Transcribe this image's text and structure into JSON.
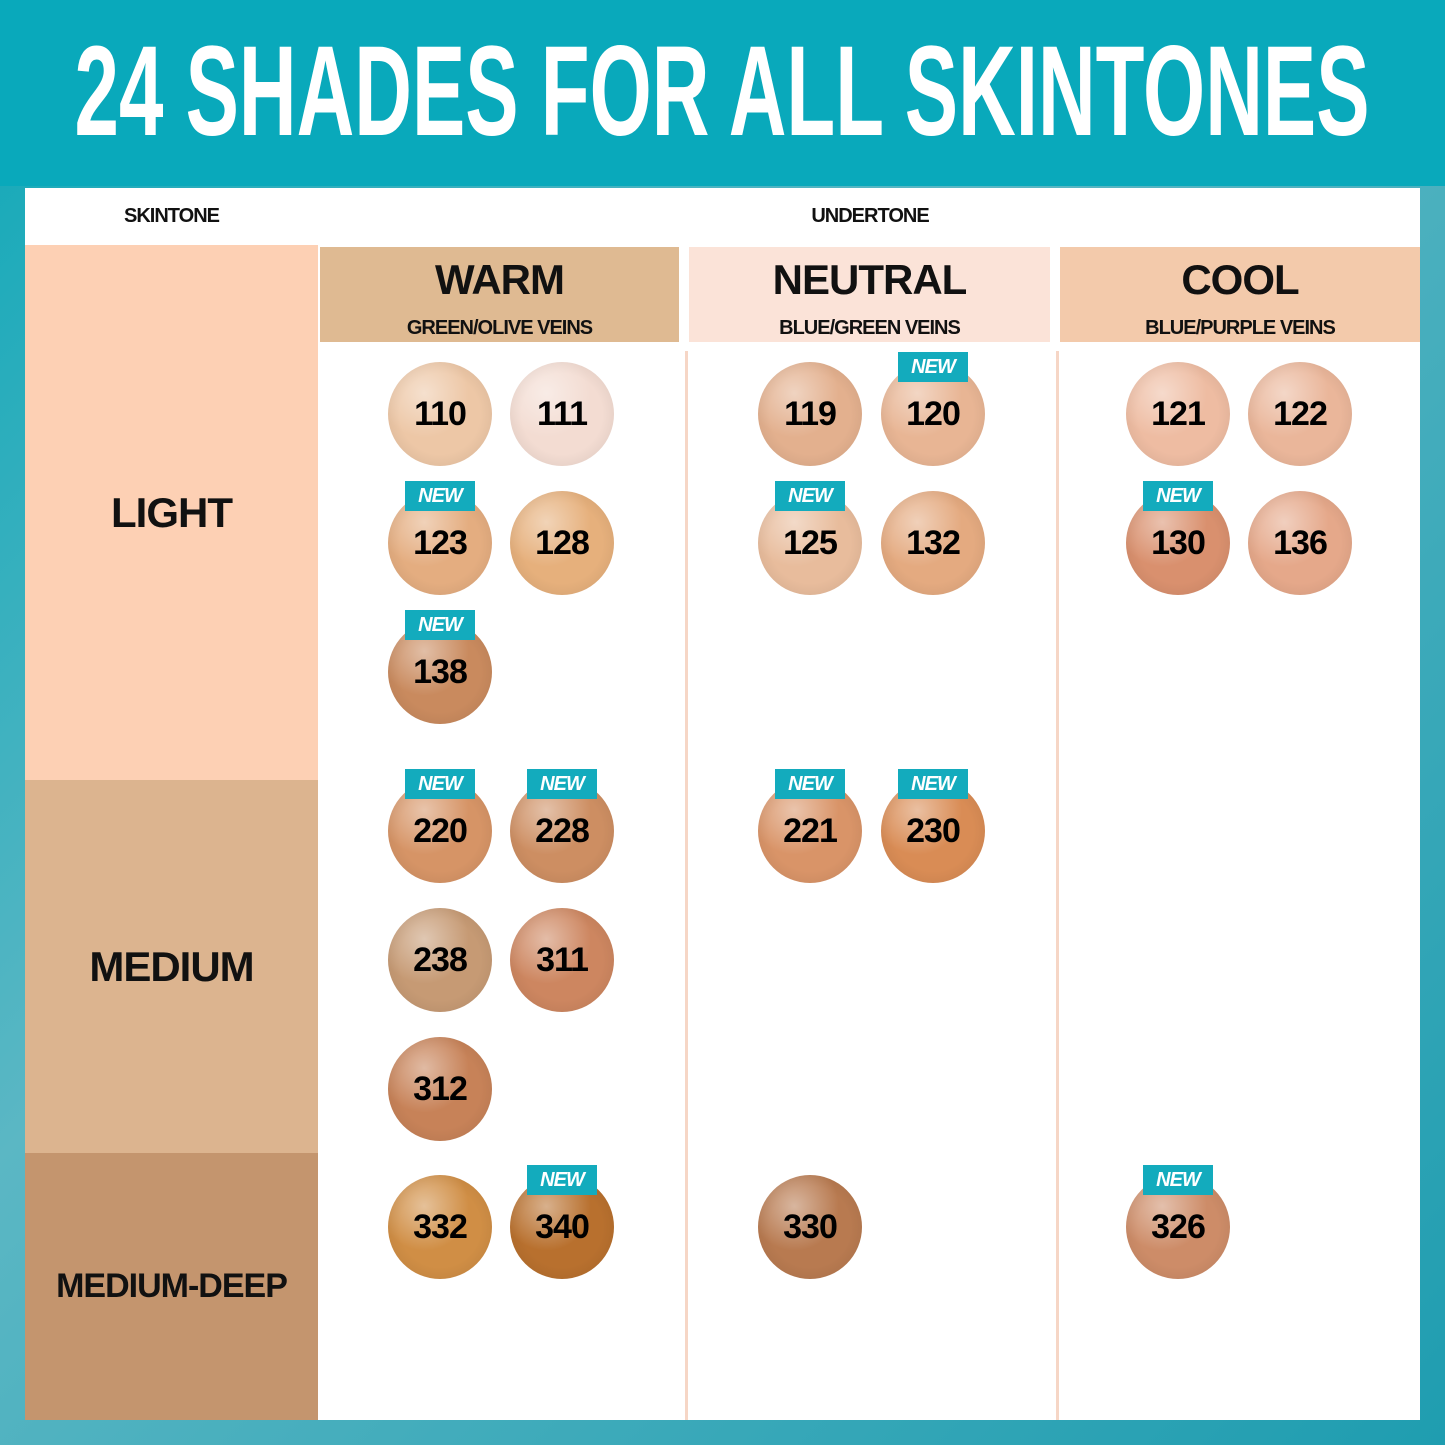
{
  "title": "24 SHADES FOR ALL SKINTONES",
  "column_headers": {
    "skintone": "SKINTONE",
    "undertone": "UNDERTONE"
  },
  "new_badge_label": "NEW",
  "undertones": [
    {
      "name": "WARM",
      "veins": "GREEN/OLIVE VEINS",
      "color": "#dfba92"
    },
    {
      "name": "NEUTRAL",
      "veins": "BLUE/GREEN VEINS",
      "color": "#fbe3d8"
    },
    {
      "name": "COOL",
      "veins": "BLUE/PURPLE VEINS",
      "color": "#f3caab"
    }
  ],
  "skintones": [
    {
      "name": "LIGHT",
      "color": "#fdd0b4",
      "shades": [
        [
          {
            "shade": "110",
            "new": false,
            "color": "#edc7a6"
          },
          {
            "shade": "111",
            "new": false,
            "color": "#f3dcd2"
          },
          {
            "shade": "123",
            "new": true,
            "color": "#e4ad80"
          },
          {
            "shade": "128",
            "new": false,
            "color": "#e6b07c"
          },
          {
            "shade": "138",
            "new": true,
            "color": "#c98a5e"
          }
        ],
        [
          {
            "shade": "119",
            "new": false,
            "color": "#e3b08e"
          },
          {
            "shade": "120",
            "new": true,
            "color": "#e8b594"
          },
          {
            "shade": "125",
            "new": true,
            "color": "#e8bc9c"
          },
          {
            "shade": "132",
            "new": false,
            "color": "#e4aa80"
          }
        ],
        [
          {
            "shade": "121",
            "new": false,
            "color": "#eebca2"
          },
          {
            "shade": "122",
            "new": false,
            "color": "#eab69a"
          },
          {
            "shade": "130",
            "new": true,
            "color": "#d9906e"
          },
          {
            "shade": "136",
            "new": false,
            "color": "#e5a88a"
          }
        ]
      ]
    },
    {
      "name": "MEDIUM",
      "color": "#dcb48f",
      "shades": [
        [
          {
            "shade": "220",
            "new": true,
            "color": "#d69466"
          },
          {
            "shade": "228",
            "new": true,
            "color": "#cd8e62"
          },
          {
            "shade": "238",
            "new": false,
            "color": "#c69a74"
          },
          {
            "shade": "311",
            "new": false,
            "color": "#cd8660"
          },
          {
            "shade": "312",
            "new": false,
            "color": "#c78258"
          }
        ],
        [
          {
            "shade": "221",
            "new": true,
            "color": "#d99468"
          },
          {
            "shade": "230",
            "new": true,
            "color": "#d98c55"
          }
        ],
        []
      ]
    },
    {
      "name": "MEDIUM-DEEP",
      "color": "#c4956e",
      "shades": [
        [
          {
            "shade": "332",
            "new": false,
            "color": "#d08e45"
          },
          {
            "shade": "340",
            "new": true,
            "color": "#b8702e"
          }
        ],
        [
          {
            "shade": "330",
            "new": false,
            "color": "#b87a50"
          }
        ],
        [
          {
            "shade": "326",
            "new": true,
            "color": "#cd8c68"
          }
        ]
      ]
    }
  ]
}
